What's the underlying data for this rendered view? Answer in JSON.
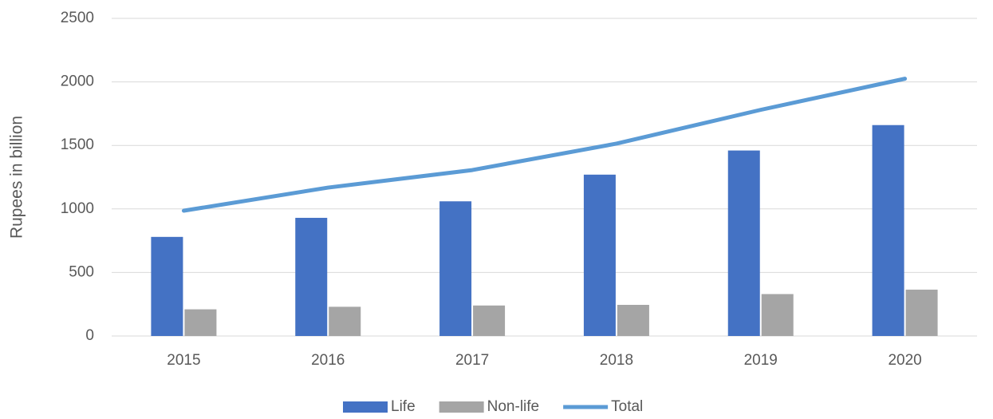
{
  "chart_data": {
    "type": "bar",
    "y_label": "Rupees in billion",
    "categories": [
      "2015",
      "2016",
      "2017",
      "2018",
      "2019",
      "2020"
    ],
    "series": [
      {
        "name": "Life",
        "type": "bar",
        "color": "#4472c4",
        "values": [
          780,
          930,
          1060,
          1270,
          1460,
          1660
        ]
      },
      {
        "name": "Non-life",
        "type": "bar",
        "color": "#a5a5a5",
        "values": [
          210,
          230,
          240,
          245,
          330,
          365
        ]
      },
      {
        "name": "Total",
        "type": "line",
        "color": "#5b9bd5",
        "values": [
          986,
          1168,
          1306,
          1514,
          1780,
          2025
        ]
      }
    ],
    "ylim": [
      0,
      2500
    ],
    "yticks": [
      0,
      500,
      1000,
      1500,
      2000,
      2500
    ],
    "grid": true,
    "legend": "bottom"
  }
}
